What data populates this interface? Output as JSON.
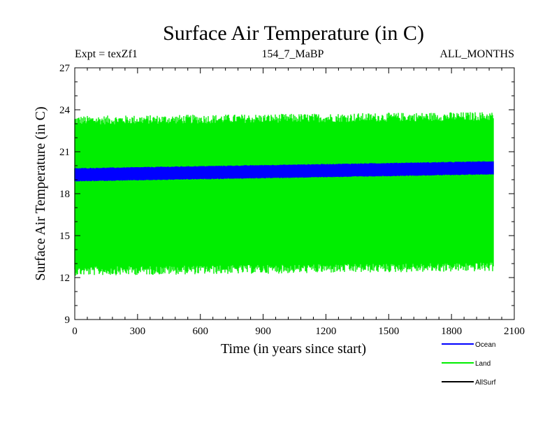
{
  "chart_data": {
    "type": "line",
    "title": "Surface Air Temperature (in C)",
    "expt_label": "Expt = texZf1",
    "run_label": "154_7_MaBP",
    "months_label": "ALL_MONTHS",
    "xlabel": "Time (in years since start)",
    "ylabel": "Surface Air Temperature (in C)",
    "xlim": [
      0,
      2100
    ],
    "ylim": [
      9,
      27
    ],
    "xticks": [
      0,
      300,
      600,
      900,
      1200,
      1500,
      1800,
      2100
    ],
    "yticks": [
      9,
      12,
      15,
      18,
      21,
      24,
      27
    ],
    "x_range_of_data": [
      0,
      2000
    ],
    "series": [
      {
        "name": "Land",
        "color": "#00ee00",
        "min": 12.7,
        "max": 23.3,
        "mean": 18.0,
        "trend_per_2000yr": 0.3
      },
      {
        "name": "Ocean",
        "color": "#0000ff",
        "min": 19.2,
        "max": 20.1,
        "mean": 19.6,
        "trend_per_2000yr": 0.5
      },
      {
        "name": "AllSurf",
        "color": "#000000"
      }
    ],
    "legend": [
      "Ocean",
      "Land",
      "AllSurf"
    ]
  },
  "colors": {
    "land": "#00ee00",
    "ocean": "#0000ff",
    "allsurf": "#000000"
  }
}
